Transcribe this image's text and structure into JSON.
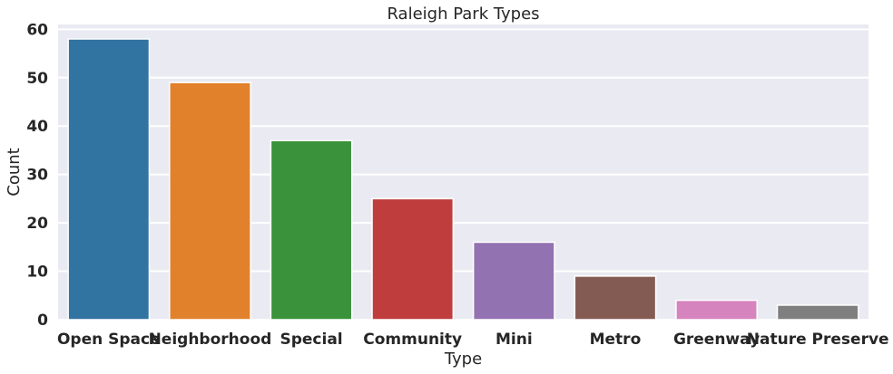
{
  "chart_data": {
    "type": "bar",
    "title": "Raleigh Park Types",
    "xlabel": "Type",
    "ylabel": "Count",
    "categories": [
      "Open Space",
      "Neighborhood",
      "Special",
      "Community",
      "Mini",
      "Metro",
      "Greenway",
      "Nature Preserve"
    ],
    "values": [
      58,
      49,
      37,
      25,
      16,
      9,
      4,
      3
    ],
    "ylim": [
      0,
      61
    ],
    "yticks": [
      0,
      10,
      20,
      30,
      40,
      50,
      60
    ],
    "colors": [
      "#3274a1",
      "#e1812c",
      "#3a923a",
      "#c03d3e",
      "#9372b2",
      "#845b53",
      "#d684bd",
      "#7f7f7f"
    ],
    "background": "#eaeaf2",
    "grid": true
  }
}
